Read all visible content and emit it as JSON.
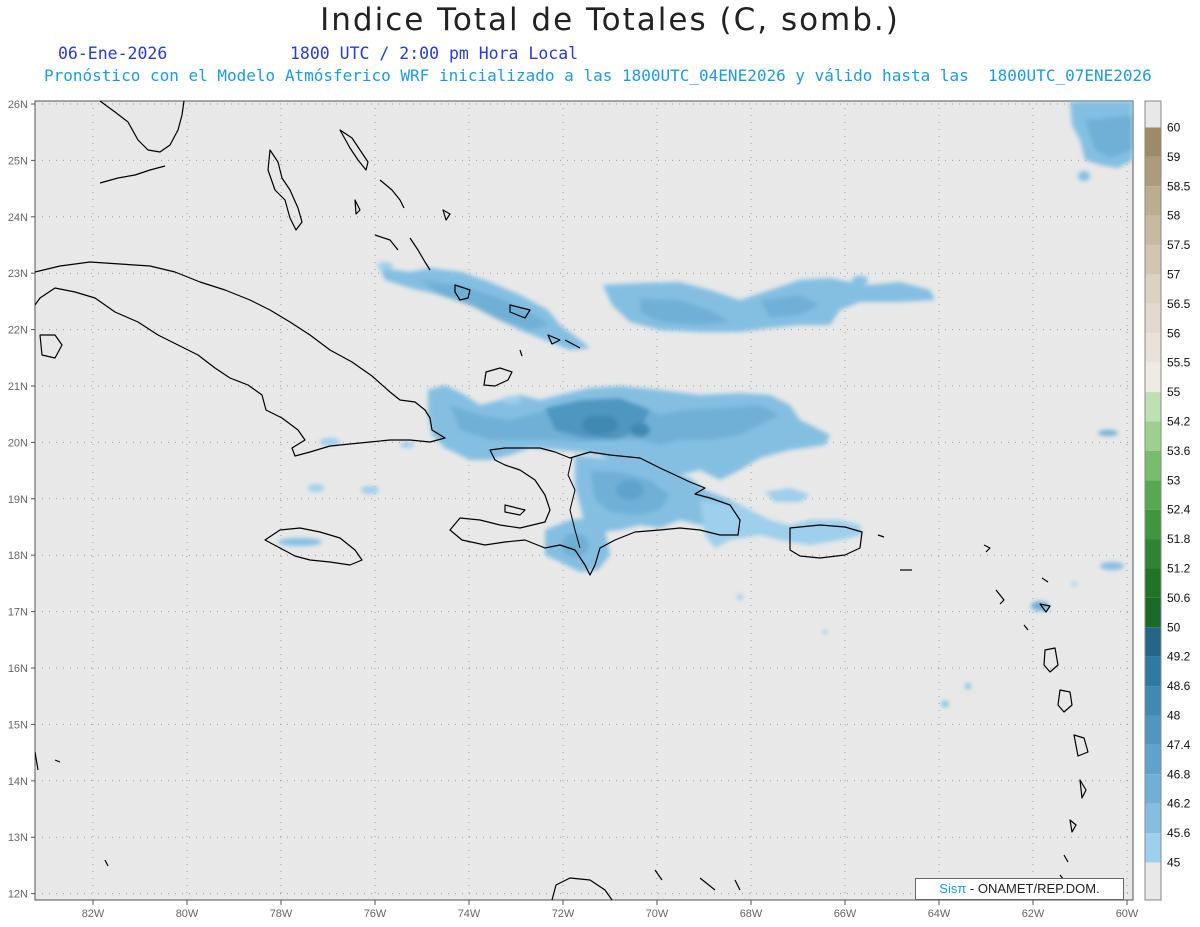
{
  "header": {
    "title": "Indice Total de Totales (C, somb.)",
    "date": "06-Ene-2026",
    "time": "1800 UTC / 2:00 pm Hora Local",
    "model_info": "Pronóstico con el Modelo Atmósferico WRF inicializado a las 1800UTC_04ENE2026 y válido hasta las  1800UTC_07ENE2026"
  },
  "map": {
    "lon_labels": [
      "82W",
      "80W",
      "78W",
      "76W",
      "74W",
      "72W",
      "70W",
      "68W",
      "66W",
      "64W",
      "62W",
      "60W"
    ],
    "lat_labels": [
      "26N",
      "25N",
      "24N",
      "23N",
      "22N",
      "21N",
      "20N",
      "19N",
      "18N",
      "17N",
      "16N",
      "15N",
      "14N",
      "13N",
      "12N"
    ],
    "background_color": "#e8e8e8"
  },
  "colorbar": {
    "labels": [
      "60",
      "59",
      "58.5",
      "58",
      "57.5",
      "57",
      "56.5",
      "56",
      "55.5",
      "55",
      "54.2",
      "53.6",
      "53",
      "52.4",
      "51.8",
      "51.2",
      "50.6",
      "50",
      "49.2",
      "48.6",
      "48",
      "47.4",
      "46.8",
      "46.2",
      "45.6",
      "45"
    ],
    "colors": [
      "#e8e8e8",
      "#9c8a68",
      "#ad9c7c",
      "#bcac90",
      "#c8baa2",
      "#d2c6b2",
      "#dcd2c2",
      "#e2dad0",
      "#e8e2da",
      "#eeebe6",
      "#bfe0b4",
      "#9ccf90",
      "#78bd6e",
      "#57a852",
      "#3f963c",
      "#2e8432",
      "#217326",
      "#1a6a2a",
      "#236687",
      "#2e7aa2",
      "#4189b3",
      "#5096c0",
      "#5fa3cc",
      "#6fb0d6",
      "#84bfe2",
      "#9ecfec"
    ]
  },
  "credit": {
    "brand": "Sisπ",
    "text": " - ONAMET/REP.DOM."
  }
}
